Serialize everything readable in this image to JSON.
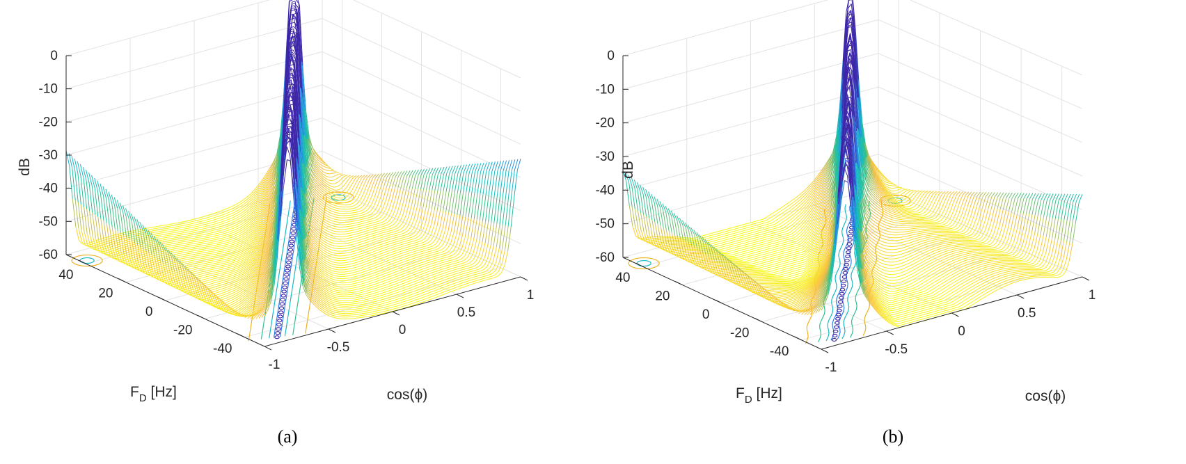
{
  "chart_data": [
    {
      "type": "surface",
      "caption": "(a)",
      "zlabel": "dB",
      "xlabel": "cos(ϕ)",
      "ylabel_main": "F",
      "ylabel_sub": "D",
      "ylabel_unit": " [Hz]",
      "x_ticks": [
        "-1",
        "-0.5",
        "0",
        "0.5",
        "1"
      ],
      "y_ticks": [
        "40",
        "20",
        "0",
        "-20",
        "-40"
      ],
      "z_ticks": [
        "0",
        "-10",
        "-20",
        "-30",
        "-40",
        "-50",
        "-60"
      ],
      "xlim": [
        -1,
        1
      ],
      "ylim": [
        -50,
        50
      ],
      "zlim": [
        -60,
        0
      ],
      "grid": true,
      "colormap": [
        "#3e26a8",
        "#2c7ee8",
        "#16b9c3",
        "#2ec08f",
        "#f7bd3c",
        "#f9fb0e"
      ],
      "null_ridge_depth_db": -60,
      "side_null_depth_db": -38
    },
    {
      "type": "surface",
      "caption": "(b)",
      "zlabel": "dB",
      "xlabel": "cos(ϕ)",
      "ylabel_main": "F",
      "ylabel_sub": "D",
      "ylabel_unit": " [Hz]",
      "x_ticks": [
        "-1",
        "-0.5",
        "0",
        "0.5",
        "1"
      ],
      "y_ticks": [
        "40",
        "20",
        "0",
        "-20",
        "-40"
      ],
      "z_ticks": [
        "0",
        "-10",
        "-20",
        "-30",
        "-40",
        "-50",
        "-60"
      ],
      "xlim": [
        -1,
        1
      ],
      "ylim": [
        -50,
        50
      ],
      "zlim": [
        -60,
        0
      ],
      "grid": true,
      "colormap": [
        "#3e26a8",
        "#2c7ee8",
        "#16b9c3",
        "#2ec08f",
        "#f7bd3c",
        "#f9fb0e"
      ],
      "null_ridge_depth_db": -48,
      "side_null_depth_db": -28
    }
  ]
}
